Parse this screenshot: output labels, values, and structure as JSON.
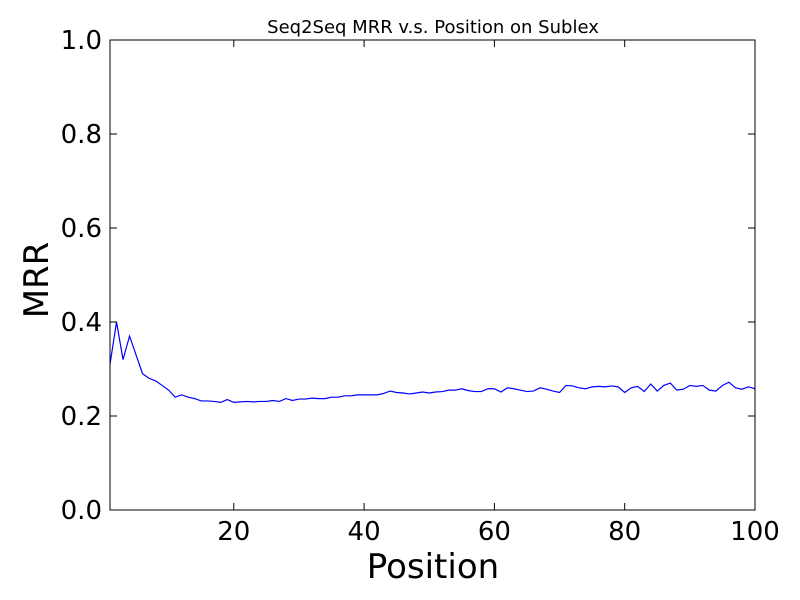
{
  "chart_data": {
    "type": "line",
    "title": "Seq2Seq MRR v.s. Position on Sublex",
    "xlabel": "Position",
    "ylabel": "MRR",
    "xlim": [
      1,
      100
    ],
    "ylim": [
      0.0,
      1.0
    ],
    "xticks": [
      20,
      40,
      60,
      80,
      100
    ],
    "xtick_labels": [
      "20",
      "40",
      "60",
      "80",
      "100"
    ],
    "yticks": [
      0.0,
      0.2,
      0.4,
      0.6,
      0.8,
      1.0
    ],
    "ytick_labels": [
      "0.0",
      "0.2",
      "0.4",
      "0.6",
      "0.8",
      "1.0"
    ],
    "grid": false,
    "legend": "none",
    "series": [
      {
        "color": "#0000ff",
        "x": [
          1,
          2,
          3,
          4,
          5,
          6,
          7,
          8,
          9,
          10,
          11,
          12,
          13,
          14,
          15,
          16,
          17,
          18,
          19,
          20,
          21,
          22,
          23,
          24,
          25,
          26,
          27,
          28,
          29,
          30,
          31,
          32,
          33,
          34,
          35,
          36,
          37,
          38,
          39,
          40,
          41,
          42,
          43,
          44,
          45,
          46,
          47,
          48,
          49,
          50,
          51,
          52,
          53,
          54,
          55,
          56,
          57,
          58,
          59,
          60,
          61,
          62,
          63,
          64,
          65,
          66,
          67,
          68,
          69,
          70,
          71,
          72,
          73,
          74,
          75,
          76,
          77,
          78,
          79,
          80,
          81,
          82,
          83,
          84,
          85,
          86,
          87,
          88,
          89,
          90,
          91,
          92,
          93,
          94,
          95,
          96,
          97,
          98,
          99,
          100
        ],
        "y": [
          0.31,
          0.4,
          0.32,
          0.37,
          0.33,
          0.29,
          0.28,
          0.275,
          0.265,
          0.255,
          0.24,
          0.245,
          0.24,
          0.237,
          0.232,
          0.232,
          0.231,
          0.229,
          0.235,
          0.229,
          0.23,
          0.231,
          0.23,
          0.231,
          0.231,
          0.233,
          0.231,
          0.237,
          0.233,
          0.236,
          0.236,
          0.238,
          0.237,
          0.237,
          0.24,
          0.24,
          0.243,
          0.243,
          0.245,
          0.245,
          0.245,
          0.245,
          0.248,
          0.253,
          0.25,
          0.249,
          0.247,
          0.249,
          0.251,
          0.249,
          0.251,
          0.252,
          0.255,
          0.255,
          0.258,
          0.254,
          0.252,
          0.252,
          0.258,
          0.258,
          0.251,
          0.26,
          0.258,
          0.255,
          0.252,
          0.253,
          0.26,
          0.257,
          0.253,
          0.25,
          0.265,
          0.264,
          0.26,
          0.258,
          0.262,
          0.263,
          0.262,
          0.264,
          0.262,
          0.25,
          0.26,
          0.263,
          0.252,
          0.268,
          0.253,
          0.265,
          0.27,
          0.255,
          0.257,
          0.265,
          0.263,
          0.265,
          0.255,
          0.253,
          0.265,
          0.272,
          0.26,
          0.257,
          0.262,
          0.258
        ]
      }
    ]
  }
}
